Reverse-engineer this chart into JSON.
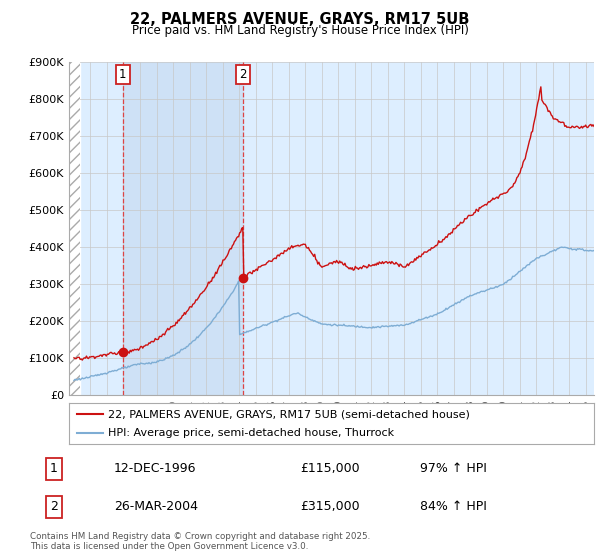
{
  "title": "22, PALMERS AVENUE, GRAYS, RM17 5UB",
  "subtitle": "Price paid vs. HM Land Registry's House Price Index (HPI)",
  "hpi_color": "#7eadd4",
  "price_color": "#cc1111",
  "marker_color": "#cc1111",
  "grid_color": "#c8c8c8",
  "transaction1": {
    "label": "1",
    "date": "12-DEC-1996",
    "price": 115000,
    "hpi_pct": "97% ↑ HPI",
    "x": 1996.95
  },
  "transaction2": {
    "label": "2",
    "date": "26-MAR-2004",
    "price": 315000,
    "hpi_pct": "84% ↑ HPI",
    "x": 2004.23
  },
  "legend_label_price": "22, PALMERS AVENUE, GRAYS, RM17 5UB (semi-detached house)",
  "legend_label_hpi": "HPI: Average price, semi-detached house, Thurrock",
  "footnote": "Contains HM Land Registry data © Crown copyright and database right 2025.\nThis data is licensed under the Open Government Licence v3.0.",
  "xmin": 1994.0,
  "xmax": 2025.5,
  "ylim": [
    0,
    900000
  ],
  "yticks": [
    0,
    100000,
    200000,
    300000,
    400000,
    500000,
    600000,
    700000,
    800000,
    900000
  ],
  "ytick_labels": [
    "£0",
    "£100K",
    "£200K",
    "£300K",
    "£400K",
    "£500K",
    "£600K",
    "£700K",
    "£800K",
    "£900K"
  ]
}
